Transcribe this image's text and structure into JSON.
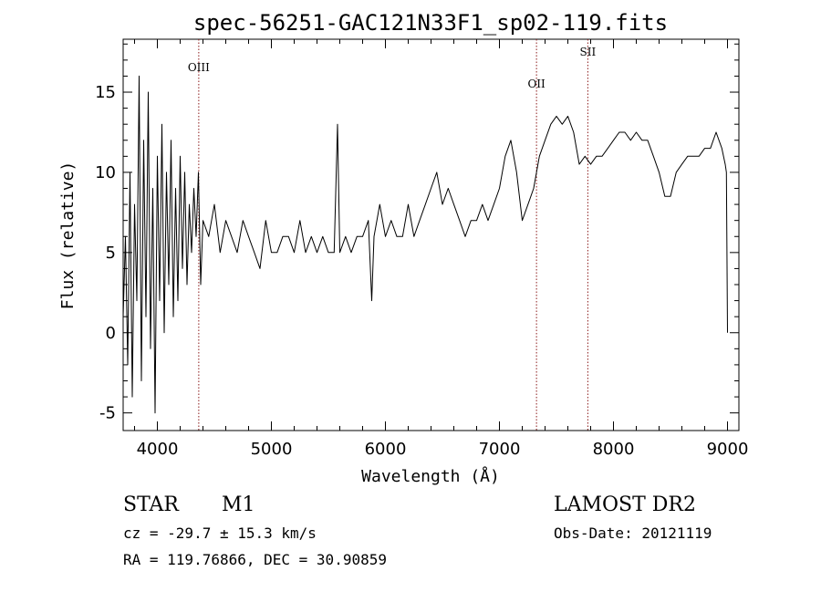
{
  "chart_data": {
    "type": "line",
    "title": "spec-56251-GAC121N33F1_sp02-119.fits",
    "xlabel": "Wavelength (Å)",
    "ylabel": "Flux (relative)",
    "xlim": [
      3700,
      9100
    ],
    "ylim": [
      -6.1,
      18.3
    ],
    "x_ticks": [
      4000,
      5000,
      6000,
      7000,
      8000,
      9000
    ],
    "y_ticks": [
      -5,
      0,
      5,
      10,
      15
    ],
    "grid": false,
    "series": [
      {
        "x": [
          3700,
          3720,
          3740,
          3760,
          3780,
          3800,
          3820,
          3840,
          3860,
          3880,
          3900,
          3920,
          3940,
          3960,
          3980,
          4000,
          4020,
          4040,
          4060,
          4080,
          4100,
          4120,
          4140,
          4160,
          4180,
          4200,
          4220,
          4240,
          4260,
          4280,
          4300,
          4320,
          4340,
          4360,
          4380,
          4400,
          4450,
          4500,
          4550,
          4600,
          4650,
          4700,
          4750,
          4800,
          4850,
          4900,
          4950,
          5000,
          5050,
          5100,
          5150,
          5200,
          5250,
          5300,
          5350,
          5400,
          5450,
          5500,
          5550,
          5580,
          5600,
          5650,
          5700,
          5750,
          5800,
          5850,
          5880,
          5900,
          5950,
          6000,
          6050,
          6100,
          6150,
          6200,
          6250,
          6300,
          6350,
          6400,
          6450,
          6500,
          6550,
          6600,
          6650,
          6700,
          6750,
          6800,
          6850,
          6900,
          6950,
          7000,
          7050,
          7100,
          7150,
          7200,
          7250,
          7300,
          7350,
          7400,
          7450,
          7500,
          7550,
          7600,
          7650,
          7700,
          7750,
          7800,
          7850,
          7900,
          7950,
          8000,
          8050,
          8100,
          8150,
          8200,
          8250,
          8300,
          8350,
          8400,
          8450,
          8500,
          8550,
          8600,
          8650,
          8700,
          8750,
          8800,
          8850,
          8900,
          8950,
          8980,
          8990,
          9000
        ],
        "y": [
          1,
          6,
          -2,
          10,
          -4,
          8,
          2,
          16,
          -3,
          12,
          1,
          15,
          -1,
          9,
          -5,
          11,
          2,
          13,
          0,
          10,
          3,
          12,
          1,
          9,
          2,
          11,
          4,
          10,
          3,
          8,
          5,
          9,
          6,
          10,
          3,
          7,
          6,
          8,
          5,
          7,
          6,
          5,
          7,
          6,
          5,
          4,
          7,
          5,
          5,
          6,
          6,
          5,
          7,
          5,
          6,
          5,
          6,
          5,
          5,
          13,
          5,
          6,
          5,
          6,
          6,
          7,
          2,
          6,
          8,
          6,
          7,
          6,
          6,
          8,
          6,
          7,
          8,
          9,
          10,
          8,
          9,
          8,
          7,
          6,
          7,
          7,
          8,
          7,
          8,
          9,
          11,
          12,
          10,
          7,
          8,
          9,
          11,
          12,
          13,
          13.5,
          13,
          13.5,
          12.5,
          10.5,
          11,
          10.5,
          11,
          11,
          11.5,
          12,
          12.5,
          12.5,
          12,
          12.5,
          12,
          12,
          11,
          10,
          8.5,
          8.5,
          10,
          10.5,
          11,
          11,
          11,
          11.5,
          11.5,
          12.5,
          11.5,
          10.5,
          10,
          0
        ]
      }
    ],
    "annotations": [
      {
        "label": "OIII",
        "x": 4363
      },
      {
        "label": "OII",
        "x": 7325
      },
      {
        "label": "SII",
        "x": 7775
      }
    ]
  },
  "info": {
    "object_class": "STAR",
    "subclass": "M1",
    "survey": "LAMOST DR2",
    "velocity": "cz = -29.7 ± 15.3 km/s",
    "obs_date": "Obs-Date: 20121119",
    "coords": "RA = 119.76866, DEC =  30.90859"
  },
  "colors": {
    "spectrum": "#000000",
    "line_markers": "#8b1a1a",
    "axes": "#000000"
  }
}
